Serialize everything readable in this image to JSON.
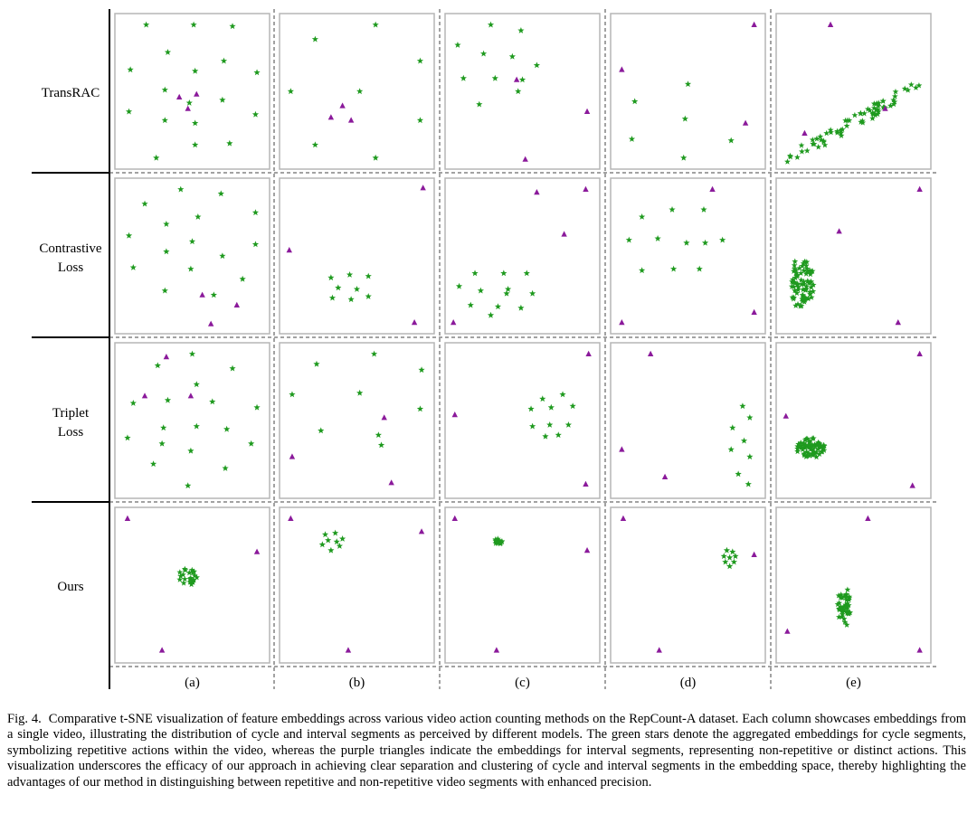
{
  "chart_data": {
    "type": "scatter",
    "title": "Comparative t-SNE visualization of feature embeddings",
    "rows": [
      "TransRAC",
      "Contrastive Loss",
      "Triplet Loss",
      "Ours"
    ],
    "columns": [
      "(a)",
      "(b)",
      "(c)",
      "(d)",
      "(e)"
    ],
    "legend": [
      {
        "name": "cycle segments",
        "marker": "star",
        "color": "#1f9a1f"
      },
      {
        "name": "interval segments",
        "marker": "triangle",
        "color": "#8b1a9b"
      }
    ],
    "xlim": [
      0,
      1
    ],
    "ylim": [
      0,
      1
    ],
    "panels": [
      [
        {
          "stars": [
            [
              0.18,
              0.96
            ],
            [
              0.51,
              0.96
            ],
            [
              0.78,
              0.95
            ],
            [
              0.33,
              0.77
            ],
            [
              0.07,
              0.65
            ],
            [
              0.52,
              0.64
            ],
            [
              0.72,
              0.71
            ],
            [
              0.95,
              0.63
            ],
            [
              0.31,
              0.51
            ],
            [
              0.48,
              0.42
            ],
            [
              0.71,
              0.44
            ],
            [
              0.06,
              0.36
            ],
            [
              0.31,
              0.3
            ],
            [
              0.52,
              0.28
            ],
            [
              0.94,
              0.34
            ],
            [
              0.52,
              0.13
            ],
            [
              0.76,
              0.14
            ],
            [
              0.25,
              0.04
            ]
          ],
          "triangles": [
            [
              0.41,
              0.46
            ],
            [
              0.53,
              0.48
            ],
            [
              0.47,
              0.38
            ]
          ]
        },
        {
          "stars": [
            [
              0.63,
              0.96
            ],
            [
              0.21,
              0.86
            ],
            [
              0.94,
              0.71
            ],
            [
              0.04,
              0.5
            ],
            [
              0.52,
              0.5
            ],
            [
              0.94,
              0.3
            ],
            [
              0.21,
              0.13
            ],
            [
              0.63,
              0.04
            ]
          ],
          "triangles": [
            [
              0.4,
              0.4
            ],
            [
              0.32,
              0.32
            ],
            [
              0.46,
              0.3
            ]
          ]
        },
        {
          "stars": [
            [
              0.28,
              0.96
            ],
            [
              0.49,
              0.92
            ],
            [
              0.05,
              0.82
            ],
            [
              0.23,
              0.76
            ],
            [
              0.43,
              0.74
            ],
            [
              0.6,
              0.68
            ],
            [
              0.09,
              0.59
            ],
            [
              0.31,
              0.59
            ],
            [
              0.47,
              0.5
            ],
            [
              0.2,
              0.41
            ],
            [
              0.5,
              0.58
            ]
          ],
          "triangles": [
            [
              0.46,
              0.58
            ],
            [
              0.95,
              0.36
            ],
            [
              0.52,
              0.03
            ]
          ]
        },
        {
          "stars": [
            [
              0.5,
              0.55
            ],
            [
              0.13,
              0.43
            ],
            [
              0.48,
              0.31
            ],
            [
              0.11,
              0.17
            ],
            [
              0.8,
              0.16
            ],
            [
              0.47,
              0.04
            ]
          ],
          "triangles": [
            [
              0.96,
              0.96
            ],
            [
              0.04,
              0.65
            ],
            [
              0.9,
              0.28
            ]
          ]
        },
        {
          "stars": [],
          "triangles": [
            [
              0.34,
              0.96
            ],
            [
              0.72,
              0.38
            ],
            [
              0.16,
              0.21
            ]
          ],
          "cloud": {
            "count": 70,
            "x": [
              0.04,
              0.96
            ],
            "y": [
              0.03,
              0.6
            ],
            "band": 0.2,
            "angle": 0.45
          }
        }
      ],
      [
        {
          "stars": [
            [
              0.42,
              0.96
            ],
            [
              0.7,
              0.93
            ],
            [
              0.17,
              0.86
            ],
            [
              0.32,
              0.72
            ],
            [
              0.54,
              0.77
            ],
            [
              0.94,
              0.8
            ],
            [
              0.06,
              0.64
            ],
            [
              0.5,
              0.6
            ],
            [
              0.94,
              0.58
            ],
            [
              0.32,
              0.53
            ],
            [
              0.71,
              0.5
            ],
            [
              0.09,
              0.42
            ],
            [
              0.49,
              0.41
            ],
            [
              0.85,
              0.34
            ],
            [
              0.31,
              0.26
            ],
            [
              0.65,
              0.23
            ]
          ],
          "triangles": [
            [
              0.57,
              0.23
            ],
            [
              0.81,
              0.16
            ],
            [
              0.63,
              0.03
            ]
          ]
        },
        {
          "stars": [
            [
              0.32,
              0.35
            ],
            [
              0.45,
              0.37
            ],
            [
              0.58,
              0.36
            ],
            [
              0.37,
              0.28
            ],
            [
              0.5,
              0.27
            ],
            [
              0.33,
              0.21
            ],
            [
              0.46,
              0.2
            ],
            [
              0.58,
              0.22
            ]
          ],
          "triangles": [
            [
              0.96,
              0.97
            ],
            [
              0.03,
              0.54
            ],
            [
              0.9,
              0.04
            ]
          ]
        },
        {
          "stars": [
            [
              0.17,
              0.38
            ],
            [
              0.37,
              0.38
            ],
            [
              0.53,
              0.38
            ],
            [
              0.06,
              0.29
            ],
            [
              0.21,
              0.26
            ],
            [
              0.4,
              0.27
            ],
            [
              0.57,
              0.24
            ],
            [
              0.14,
              0.16
            ],
            [
              0.33,
              0.15
            ],
            [
              0.49,
              0.14
            ],
            [
              0.28,
              0.09
            ],
            [
              0.39,
              0.24
            ]
          ],
          "triangles": [
            [
              0.6,
              0.94
            ],
            [
              0.94,
              0.96
            ],
            [
              0.79,
              0.65
            ],
            [
              0.02,
              0.04
            ]
          ]
        },
        {
          "stars": [
            [
              0.39,
              0.82
            ],
            [
              0.61,
              0.82
            ],
            [
              0.18,
              0.77
            ],
            [
              0.09,
              0.61
            ],
            [
              0.29,
              0.62
            ],
            [
              0.49,
              0.59
            ],
            [
              0.62,
              0.59
            ],
            [
              0.74,
              0.61
            ],
            [
              0.18,
              0.4
            ],
            [
              0.4,
              0.41
            ],
            [
              0.58,
              0.41
            ]
          ],
          "triangles": [
            [
              0.67,
              0.96
            ],
            [
              0.96,
              0.11
            ],
            [
              0.04,
              0.04
            ]
          ]
        },
        {
          "stars": [],
          "triangles": [
            [
              0.96,
              0.96
            ],
            [
              0.4,
              0.67
            ],
            [
              0.81,
              0.04
            ]
          ],
          "cloud": {
            "count": 75,
            "x": [
              0.06,
              0.24
            ],
            "y": [
              0.15,
              0.44
            ],
            "band": 0.14,
            "angle": 1.25
          }
        }
      ],
      [
        {
          "stars": [
            [
              0.5,
              0.96
            ],
            [
              0.26,
              0.88
            ],
            [
              0.78,
              0.86
            ],
            [
              0.53,
              0.75
            ],
            [
              0.09,
              0.62
            ],
            [
              0.33,
              0.64
            ],
            [
              0.64,
              0.63
            ],
            [
              0.95,
              0.59
            ],
            [
              0.3,
              0.45
            ],
            [
              0.53,
              0.46
            ],
            [
              0.74,
              0.44
            ],
            [
              0.05,
              0.38
            ],
            [
              0.29,
              0.34
            ],
            [
              0.49,
              0.29
            ],
            [
              0.91,
              0.34
            ],
            [
              0.23,
              0.2
            ],
            [
              0.73,
              0.17
            ],
            [
              0.47,
              0.05
            ]
          ],
          "triangles": [
            [
              0.32,
              0.94
            ],
            [
              0.49,
              0.67
            ],
            [
              0.17,
              0.67
            ]
          ]
        },
        {
          "stars": [
            [
              0.62,
              0.96
            ],
            [
              0.22,
              0.89
            ],
            [
              0.95,
              0.85
            ],
            [
              0.05,
              0.68
            ],
            [
              0.52,
              0.69
            ],
            [
              0.94,
              0.58
            ],
            [
              0.25,
              0.43
            ],
            [
              0.65,
              0.4
            ],
            [
              0.67,
              0.33
            ]
          ],
          "triangles": [
            [
              0.69,
              0.52
            ],
            [
              0.05,
              0.25
            ],
            [
              0.74,
              0.07
            ]
          ]
        },
        {
          "stars": [
            [
              0.64,
              0.65
            ],
            [
              0.78,
              0.68
            ],
            [
              0.56,
              0.58
            ],
            [
              0.7,
              0.59
            ],
            [
              0.85,
              0.6
            ],
            [
              0.57,
              0.46
            ],
            [
              0.69,
              0.47
            ],
            [
              0.82,
              0.47
            ],
            [
              0.66,
              0.39
            ],
            [
              0.75,
              0.4
            ]
          ],
          "triangles": [
            [
              0.96,
              0.96
            ],
            [
              0.03,
              0.54
            ],
            [
              0.94,
              0.06
            ]
          ]
        },
        {
          "stars": [
            [
              0.88,
              0.6
            ],
            [
              0.93,
              0.52
            ],
            [
              0.81,
              0.45
            ],
            [
              0.89,
              0.36
            ],
            [
              0.8,
              0.3
            ],
            [
              0.93,
              0.25
            ],
            [
              0.85,
              0.13
            ],
            [
              0.92,
              0.06
            ]
          ],
          "triangles": [
            [
              0.24,
              0.96
            ],
            [
              0.04,
              0.3
            ],
            [
              0.34,
              0.11
            ]
          ]
        },
        {
          "stars": [],
          "triangles": [
            [
              0.96,
              0.96
            ],
            [
              0.03,
              0.53
            ],
            [
              0.91,
              0.05
            ]
          ],
          "cloud": {
            "count": 70,
            "x": [
              0.1,
              0.3
            ],
            "y": [
              0.24,
              0.38
            ],
            "band": 0.4,
            "angle": 0.0
          }
        }
      ],
      [
        {
          "stars": [],
          "triangles": [
            [
              0.05,
              0.96
            ],
            [
              0.95,
              0.73
            ],
            [
              0.29,
              0.05
            ]
          ],
          "cloud": {
            "count": 22,
            "x": [
              0.4,
              0.55
            ],
            "y": [
              0.5,
              0.62
            ],
            "band": 0.5,
            "angle": 0.0
          }
        },
        {
          "stars": [
            [
              0.28,
              0.85
            ],
            [
              0.35,
              0.86
            ],
            [
              0.4,
              0.82
            ],
            [
              0.38,
              0.77
            ],
            [
              0.32,
              0.74
            ],
            [
              0.26,
              0.78
            ],
            [
              0.3,
              0.81
            ],
            [
              0.36,
              0.8
            ]
          ],
          "triangles": [
            [
              0.04,
              0.96
            ],
            [
              0.95,
              0.87
            ],
            [
              0.44,
              0.05
            ]
          ]
        },
        {
          "stars": [],
          "triangles": [
            [
              0.03,
              0.96
            ],
            [
              0.95,
              0.74
            ],
            [
              0.32,
              0.05
            ]
          ],
          "cloud": {
            "count": 14,
            "x": [
              0.3,
              0.36
            ],
            "y": [
              0.78,
              0.82
            ],
            "band": 0.5,
            "angle": 0.0
          }
        },
        {
          "stars": [
            [
              0.77,
              0.74
            ],
            [
              0.81,
              0.73
            ],
            [
              0.75,
              0.7
            ],
            [
              0.79,
              0.69
            ],
            [
              0.83,
              0.7
            ],
            [
              0.76,
              0.66
            ],
            [
              0.82,
              0.66
            ],
            [
              0.79,
              0.63
            ]
          ],
          "triangles": [
            [
              0.05,
              0.96
            ],
            [
              0.96,
              0.71
            ],
            [
              0.3,
              0.05
            ]
          ]
        },
        {
          "stars": [],
          "triangles": [
            [
              0.6,
              0.96
            ],
            [
              0.04,
              0.18
            ],
            [
              0.96,
              0.05
            ]
          ],
          "cloud": {
            "count": 45,
            "x": [
              0.39,
              0.48
            ],
            "y": [
              0.27,
              0.4
            ],
            "band": 0.25,
            "angle": 1.45
          }
        }
      ]
    ]
  },
  "caption": {
    "label": "Fig. 4.",
    "text": "Comparative t-SNE visualization of feature embeddings across various video action counting methods on the RepCount-A dataset. Each column showcases embeddings from a single video, illustrating the distribution of cycle and interval segments as perceived by different models. The green stars denote the aggregated embeddings for cycle segments, symbolizing repetitive actions within the video, whereas the purple triangles indicate the embeddings for interval segments, representing non-repetitive or distinct actions. This visualization underscores the efficacy of our approach in achieving clear separation and clustering of cycle and interval segments in the embedding space, thereby highlighting the advantages of our method in distinguishing between repetitive and non-repetitive video segments with enhanced precision."
  }
}
